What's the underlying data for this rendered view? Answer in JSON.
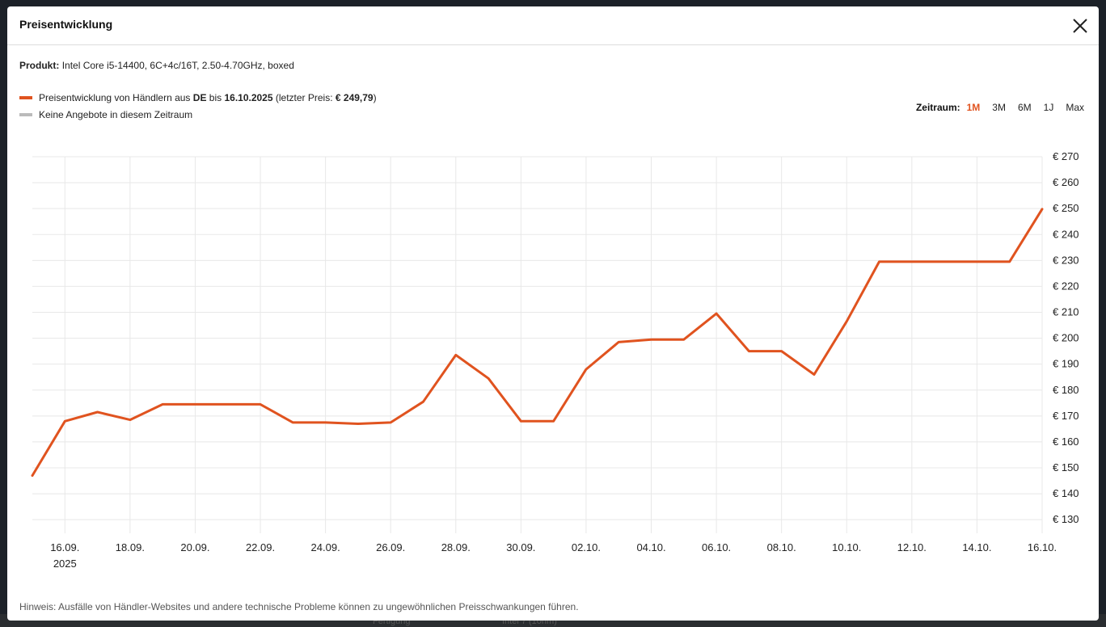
{
  "modal": {
    "title": "Preisentwicklung"
  },
  "product": {
    "label": "Produkt:",
    "name": "Intel Core i5-14400, 6C+4c/16T, 2.50-4.70GHz, boxed"
  },
  "legend": {
    "prefix": "Preisentwicklung von Händlern aus ",
    "country": "DE",
    "middle": " bis ",
    "date": "16.10.2025",
    "suffix_open": " (letzter Preis: ",
    "last_price": "€ 249,79",
    "suffix_close": ")",
    "no_offers": "Keine Angebote in diesem Zeitraum",
    "colors": {
      "series": "#e0531f",
      "no_offers": "#bbbbbb"
    }
  },
  "timerange": {
    "label": "Zeitraum:",
    "options": [
      "1M",
      "3M",
      "6M",
      "1J",
      "Max"
    ],
    "active": "1M"
  },
  "chart_data": {
    "type": "line",
    "title": "",
    "xlabel": "",
    "ylabel": "",
    "grid": true,
    "x_tick_labels": [
      "16.09.",
      "18.09.",
      "20.09.",
      "22.09.",
      "24.09.",
      "26.09.",
      "28.09.",
      "30.09.",
      "02.10.",
      "04.10.",
      "06.10.",
      "08.10.",
      "10.10.",
      "12.10.",
      "14.10.",
      "16.10."
    ],
    "x_year_label": "2025",
    "y_tick_labels": [
      "€ 130",
      "€ 140",
      "€ 150",
      "€ 160",
      "€ 170",
      "€ 180",
      "€ 190",
      "€ 200",
      "€ 210",
      "€ 220",
      "€ 230",
      "€ 240",
      "€ 250",
      "€ 260",
      "€ 270"
    ],
    "ylim": [
      126,
      270
    ],
    "series": [
      {
        "color": "#e0531f",
        "points": [
          [
            "15.09.",
            147
          ],
          [
            "16.09.",
            168
          ],
          [
            "17.09.",
            171.5
          ],
          [
            "18.09.",
            168.5
          ],
          [
            "19.09.",
            174.5
          ],
          [
            "20.09.",
            174.5
          ],
          [
            "21.09.",
            174.5
          ],
          [
            "22.09.",
            174.5
          ],
          [
            "23.09.",
            167.5
          ],
          [
            "24.09.",
            167.5
          ],
          [
            "25.09.",
            167
          ],
          [
            "26.09.",
            167.5
          ],
          [
            "27.09.",
            175.5
          ],
          [
            "28.09.",
            193.5
          ],
          [
            "29.09.",
            184.5
          ],
          [
            "30.09.",
            168
          ],
          [
            "01.10.",
            168
          ],
          [
            "02.10.",
            188
          ],
          [
            "03.10.",
            198.5
          ],
          [
            "04.10.",
            199.5
          ],
          [
            "05.10.",
            199.5
          ],
          [
            "06.10.",
            209.5
          ],
          [
            "07.10.",
            195
          ],
          [
            "08.10.",
            195
          ],
          [
            "09.10.",
            186
          ],
          [
            "10.10.",
            206.5
          ],
          [
            "11.10.",
            229.5
          ],
          [
            "12.10.",
            229.5
          ],
          [
            "13.10.",
            229.5
          ],
          [
            "14.10.",
            229.5
          ],
          [
            "15.10.",
            229.5
          ],
          [
            "16.10.",
            249.79
          ]
        ]
      }
    ]
  },
  "note": "Hinweis: Ausfälle von Händler-Websites und andere technische Probleme können zu ungewöhnlichen Preisschwankungen führen.",
  "background": {
    "left_text": "Fertigung",
    "right_text": "Intel 7 (10nm)"
  }
}
